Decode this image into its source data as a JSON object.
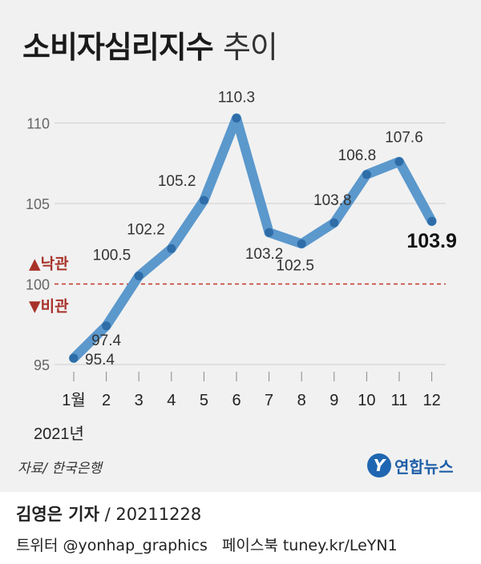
{
  "title": {
    "main": "소비자심리지수",
    "sub": "추이"
  },
  "chart_data": {
    "type": "line",
    "x": [
      "1월",
      "2",
      "3",
      "4",
      "5",
      "6",
      "7",
      "8",
      "9",
      "10",
      "11",
      "12"
    ],
    "values": [
      95.4,
      97.4,
      100.5,
      102.2,
      105.2,
      110.3,
      103.2,
      102.5,
      103.8,
      106.8,
      107.6,
      103.9
    ],
    "value_labels": [
      "95.4",
      "97.4",
      "100.5",
      "102.2",
      "105.2",
      "110.3",
      "103.2",
      "102.5",
      "103.8",
      "106.8",
      "107.6",
      "103.9"
    ],
    "yticks": [
      "95",
      "100",
      "105",
      "110"
    ],
    "ylim": [
      95,
      110
    ],
    "x_group_label": "2021년",
    "reference_line": {
      "value": 100,
      "above_label": "▲낙관",
      "below_label": "▼비관"
    },
    "highlight_last": true,
    "colors": {
      "line": "#5b98cc",
      "marker": "#2e6da8",
      "reference": "#c0392b",
      "grid": "#cfcfcf"
    }
  },
  "footer": {
    "source": "자료/ 한국은행",
    "brand_logo": "Y",
    "brand": "연합뉴스",
    "author": "김영은 기자",
    "date": " / 20211228",
    "social": "트위터 @yonhap_graphics",
    "facebook": "페이스북 tuney.kr/LeYN1"
  }
}
